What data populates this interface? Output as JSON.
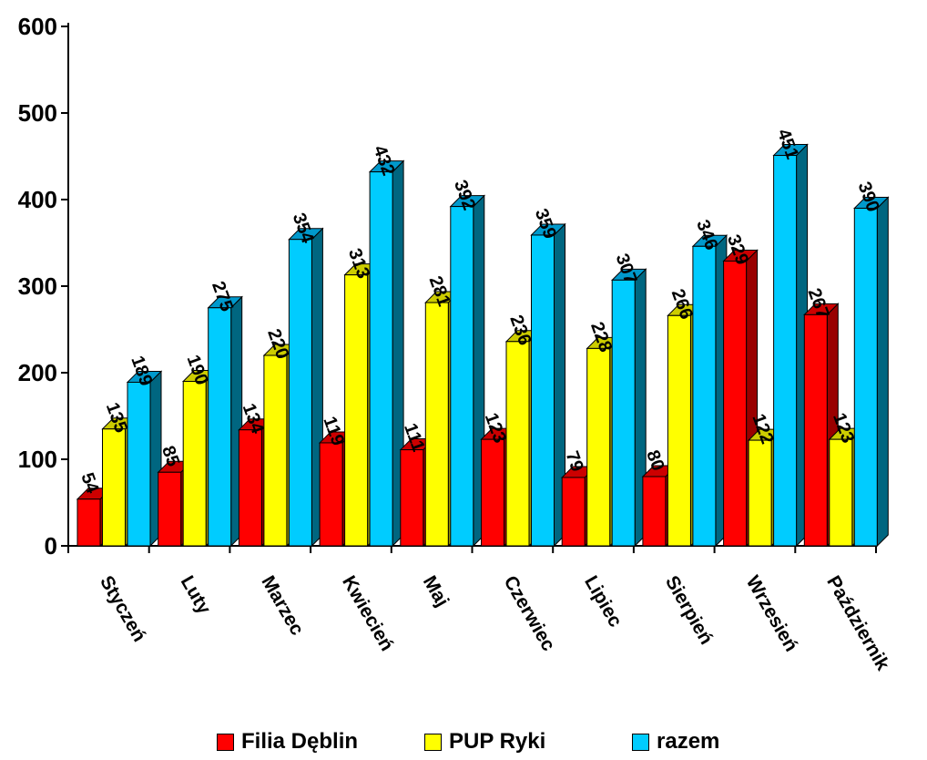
{
  "chart_data": {
    "type": "bar",
    "categories": [
      "Styczeń",
      "Luty",
      "Marzec",
      "Kwiecień",
      "Maj",
      "Czerwiec",
      "Lipiec",
      "Sierpień",
      "Wrzesień",
      "Październik"
    ],
    "series": [
      {
        "name": "Filia Dęblin",
        "values": [
          54,
          85,
          134,
          119,
          111,
          123,
          79,
          80,
          329,
          267
        ],
        "color": "#ff0000",
        "side_color": "#990000",
        "top_color": "#cc0000"
      },
      {
        "name": "PUP Ryki",
        "values": [
          135,
          190,
          220,
          313,
          281,
          236,
          228,
          266,
          122,
          123
        ],
        "color": "#ffff00",
        "side_color": "#999900",
        "top_color": "#cccc00"
      },
      {
        "name": "razem",
        "values": [
          189,
          275,
          354,
          432,
          392,
          359,
          307,
          346,
          451,
          390
        ],
        "color": "#00ccff",
        "side_color": "#006680",
        "top_color": "#0099cc"
      }
    ],
    "yticks": [
      "0",
      "100",
      "200",
      "300",
      "400",
      "500",
      "600"
    ],
    "ylim": [
      0,
      600
    ],
    "title": "",
    "xlabel": "",
    "ylabel": "",
    "grid": false,
    "legend_position": "bottom",
    "three_d": true
  }
}
